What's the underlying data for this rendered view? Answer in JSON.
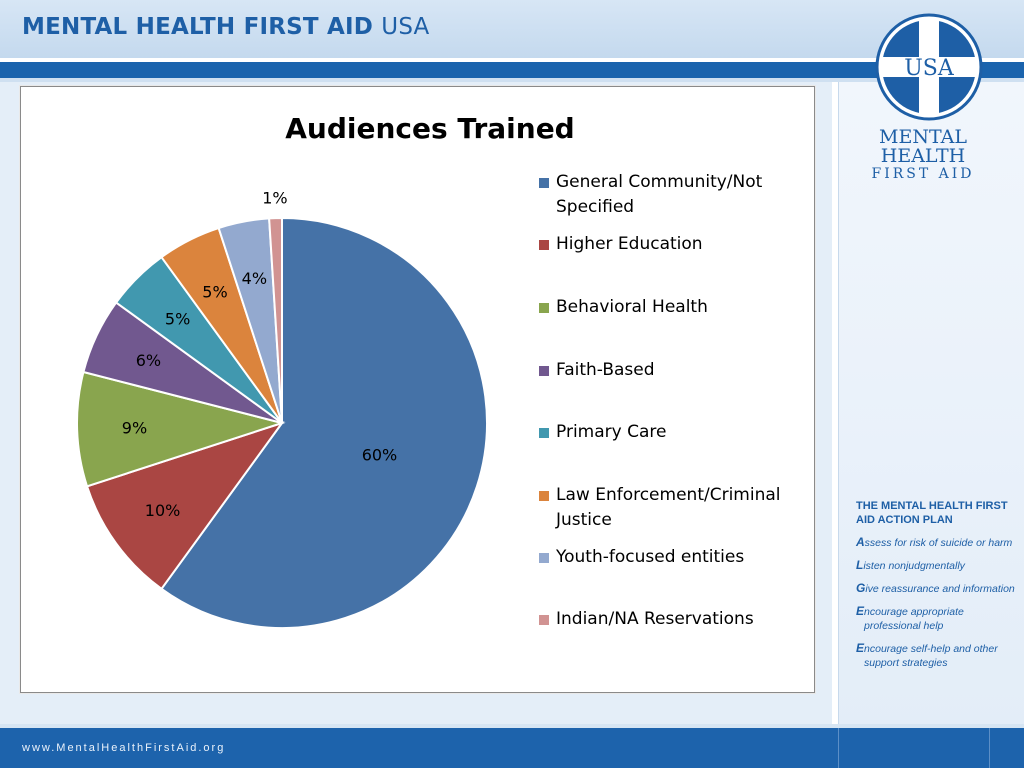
{
  "header": {
    "title_main": "MENTAL HEALTH FIRST AID",
    "title_suffix": "USA"
  },
  "logo": {
    "badge": "USA",
    "line1": "MENTAL",
    "line2": "HEALTH",
    "line3": "FIRST AID"
  },
  "action_plan": {
    "title": "THE MENTAL HEALTH FIRST AID ACTION PLAN",
    "items": [
      {
        "letter": "A",
        "rest": "ssess for risk of suicide or harm"
      },
      {
        "letter": "L",
        "rest": "isten nonjudgmentally"
      },
      {
        "letter": "G",
        "rest": "ive reassurance and information"
      },
      {
        "letter": "E",
        "rest": "ncourage appropriate professional help"
      },
      {
        "letter": "E",
        "rest": "ncourage self-help and other support strategies"
      }
    ]
  },
  "footer": {
    "url": "www.MentalHealthFirstAid.org"
  },
  "colors": {
    "brand_blue": "#1e5fa6",
    "band_blue": "#1a63ad"
  },
  "chart_data": {
    "type": "pie",
    "title": "Audiences Trained",
    "legend_position": "right",
    "slices": [
      {
        "label": "General Community/Not Specified",
        "value": 60,
        "display": "60%",
        "color": "#4572a7"
      },
      {
        "label": "Higher Education",
        "value": 10,
        "display": "10%",
        "color": "#aa4643"
      },
      {
        "label": "Behavioral Health",
        "value": 9,
        "display": "9%",
        "color": "#89a54e"
      },
      {
        "label": "Faith-Based",
        "value": 6,
        "display": "6%",
        "color": "#71588f"
      },
      {
        "label": "Primary Care",
        "value": 5,
        "display": "5%",
        "color": "#4198af"
      },
      {
        "label": "Law Enforcement/Criminal Justice",
        "value": 5,
        "display": "5%",
        "color": "#db843d"
      },
      {
        "label": "Youth-focused entities",
        "value": 4,
        "display": "4%",
        "color": "#93a9cf"
      },
      {
        "label": "Indian/NA Reservations",
        "value": 1,
        "display": "1%",
        "color": "#d19392"
      }
    ]
  }
}
